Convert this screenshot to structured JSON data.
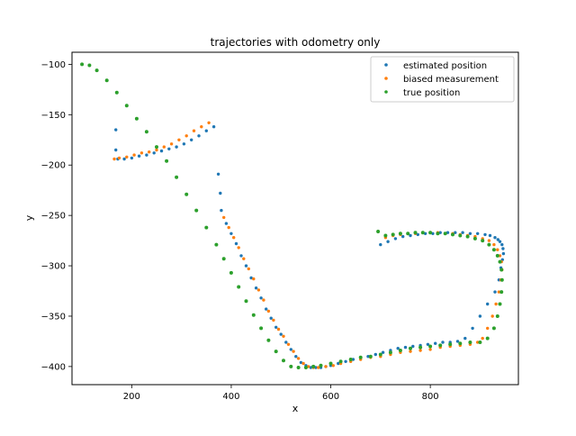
{
  "chart_data": {
    "type": "scatter",
    "title": "trajectories with odometry only",
    "xlabel": "x",
    "ylabel": "y",
    "xlim": [
      80,
      977
    ],
    "ylim": [
      -418,
      -88
    ],
    "xticks": [
      200,
      400,
      600,
      800
    ],
    "yticks": [
      -100,
      -150,
      -200,
      -250,
      -300,
      -350,
      -400
    ],
    "xtick_labels": [
      "200",
      "400",
      "600",
      "800"
    ],
    "ytick_labels": [
      "−100",
      "−150",
      "−200",
      "−250",
      "−300",
      "−350",
      "−400"
    ],
    "grid": false,
    "legend_position": "top-right",
    "series": [
      {
        "name": "estimated position",
        "color": "#1f77b4",
        "x": [
          365,
          350,
          335,
          320,
          305,
          290,
          275,
          260,
          245,
          230,
          215,
          200,
          185,
          172,
          168,
          168,
          374,
          378,
          380,
          390,
          400,
          410,
          420,
          430,
          440,
          450,
          460,
          470,
          480,
          490,
          500,
          510,
          520,
          530,
          540,
          550,
          560,
          570,
          580,
          590,
          600,
          615,
          630,
          645,
          660,
          675,
          690,
          705,
          720,
          735,
          750,
          765,
          780,
          795,
          810,
          825,
          840,
          855,
          870,
          885,
          900,
          915,
          930,
          938,
          942,
          945,
          947,
          946,
          944,
          940,
          936,
          930,
          920,
          910,
          895,
          880,
          865,
          850,
          835,
          820,
          805,
          790,
          775,
          760,
          745,
          730,
          715,
          700
        ],
        "y": [
          -162,
          -166,
          -171,
          -175,
          -179,
          -182,
          -184,
          -186,
          -188,
          -190,
          -191,
          -193,
          -194,
          -194,
          -185,
          -165,
          -209,
          -228,
          -245,
          -258,
          -268,
          -278,
          -290,
          -300,
          -312,
          -322,
          -332,
          -343,
          -352,
          -361,
          -368,
          -376,
          -383,
          -390,
          -396,
          -399,
          -401,
          -401,
          -401,
          -400,
          -399,
          -397,
          -395,
          -393,
          -391,
          -390,
          -388,
          -386,
          -384,
          -382,
          -381,
          -380,
          -379,
          -378,
          -377,
          -376,
          -376,
          -375,
          -372,
          -362,
          -350,
          -338,
          -326,
          -314,
          -302,
          -294,
          -288,
          -283,
          -279,
          -276,
          -274,
          -272,
          -270,
          -269,
          -268,
          -268,
          -267,
          -267,
          -267,
          -267,
          -268,
          -268,
          -269,
          -270,
          -271,
          -273,
          -276,
          -279
        ]
      },
      {
        "name": "biased measurement",
        "color": "#ff7f0e",
        "x": [
          355,
          340,
          325,
          310,
          295,
          280,
          265,
          250,
          235,
          220,
          205,
          190,
          175,
          165,
          385,
          395,
          405,
          415,
          425,
          435,
          445,
          455,
          465,
          475,
          485,
          495,
          505,
          515,
          525,
          535,
          545,
          555,
          565,
          575,
          590,
          605,
          620,
          640,
          660,
          680,
          700,
          720,
          740,
          760,
          780,
          800,
          820,
          840,
          860,
          880,
          895,
          905,
          915,
          925,
          932,
          938,
          942,
          944,
          943,
          940,
          935,
          928,
          918,
          905,
          890,
          875,
          860,
          845,
          830,
          815,
          800,
          785,
          770,
          755,
          740,
          725,
          710,
          695
        ],
        "y": [
          -158,
          -162,
          -166,
          -171,
          -175,
          -179,
          -182,
          -185,
          -187,
          -188,
          -190,
          -192,
          -193,
          -194,
          -252,
          -262,
          -272,
          -282,
          -293,
          -303,
          -313,
          -324,
          -334,
          -345,
          -354,
          -363,
          -370,
          -378,
          -385,
          -392,
          -397,
          -400,
          -401,
          -401,
          -400,
          -399,
          -397,
          -395,
          -393,
          -391,
          -390,
          -388,
          -386,
          -385,
          -384,
          -383,
          -381,
          -380,
          -379,
          -378,
          -376,
          -372,
          -362,
          -350,
          -338,
          -326,
          -314,
          -304,
          -296,
          -290,
          -284,
          -279,
          -275,
          -273,
          -271,
          -270,
          -269,
          -268,
          -268,
          -267,
          -267,
          -267,
          -268,
          -268,
          -269,
          -270,
          -272,
          -266
        ]
      },
      {
        "name": "true position",
        "color": "#2ca02c",
        "x": [
          100,
          115,
          130,
          150,
          170,
          190,
          210,
          230,
          250,
          270,
          290,
          310,
          330,
          350,
          370,
          385,
          400,
          415,
          430,
          445,
          460,
          475,
          490,
          505,
          520,
          535,
          550,
          565,
          580,
          600,
          620,
          640,
          660,
          680,
          700,
          720,
          740,
          760,
          780,
          800,
          820,
          840,
          860,
          880,
          900,
          915,
          928,
          935,
          940,
          943,
          944,
          943,
          940,
          935,
          928,
          918,
          905,
          890,
          875,
          860,
          845,
          830,
          815,
          800,
          785,
          770,
          755,
          740,
          725,
          710,
          695
        ],
        "y": [
          -100,
          -101,
          -106,
          -116,
          -128,
          -141,
          -154,
          -167,
          -182,
          -196,
          -212,
          -229,
          -245,
          -262,
          -279,
          -293,
          -307,
          -321,
          -335,
          -349,
          -362,
          -374,
          -385,
          -394,
          -400,
          -401,
          -401,
          -400,
          -399,
          -397,
          -395,
          -393,
          -391,
          -390,
          -388,
          -386,
          -384,
          -382,
          -381,
          -380,
          -379,
          -378,
          -377,
          -376,
          -376,
          -372,
          -362,
          -350,
          -338,
          -326,
          -314,
          -304,
          -296,
          -290,
          -284,
          -279,
          -275,
          -273,
          -271,
          -270,
          -269,
          -268,
          -268,
          -267,
          -267,
          -267,
          -268,
          -268,
          -269,
          -270,
          -266
        ]
      }
    ]
  }
}
